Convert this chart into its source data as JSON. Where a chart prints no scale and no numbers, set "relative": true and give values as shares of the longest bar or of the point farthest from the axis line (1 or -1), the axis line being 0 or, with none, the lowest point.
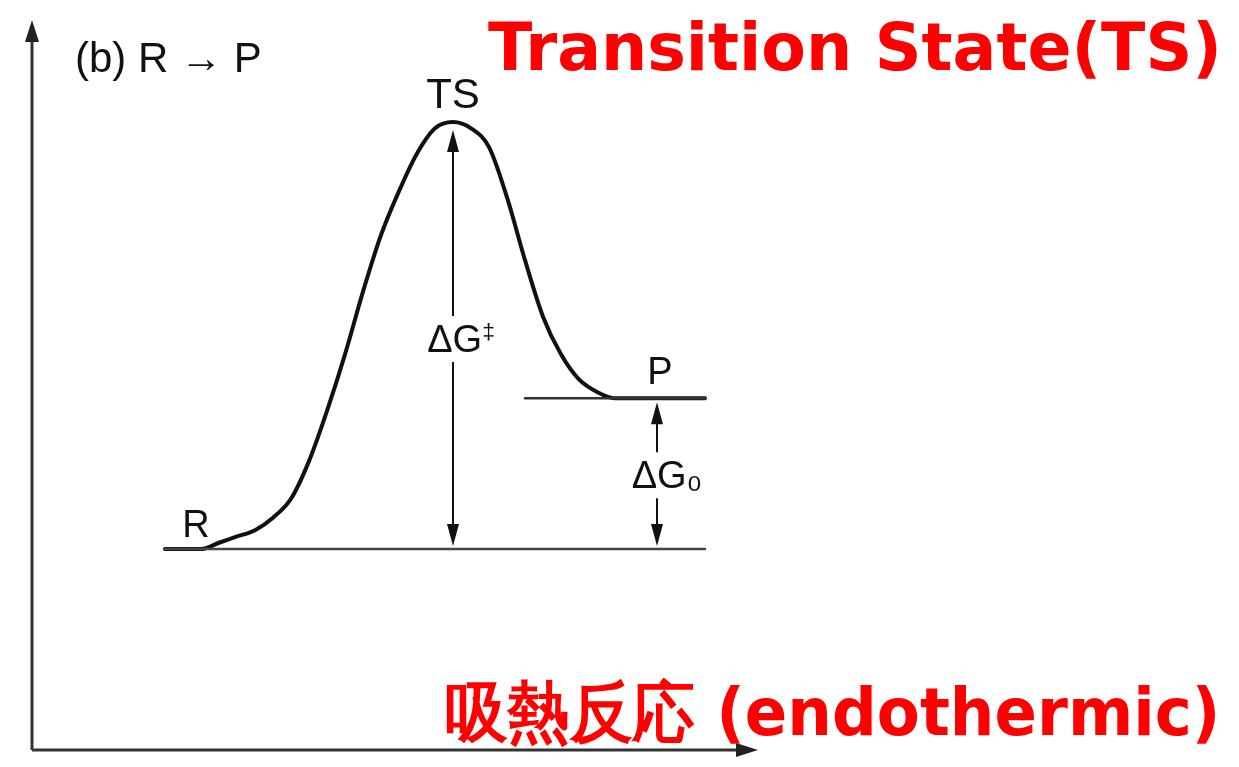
{
  "chart_data": {
    "type": "line",
    "title": "(b) R → P",
    "relative": true,
    "categories": [
      null,
      null,
      null,
      null,
      null,
      null,
      null,
      null,
      null,
      null,
      null,
      null,
      null,
      null,
      null,
      null,
      null,
      null,
      null,
      null,
      null,
      null,
      null,
      null,
      null,
      null,
      null,
      null,
      null,
      null,
      null
    ],
    "series": [
      {
        "color": "#111111",
        "values": [
          0.32,
          0.32,
          0.32,
          0.33,
          0.34,
          0.35,
          0.37,
          0.4,
          0.46,
          0.54,
          0.63,
          0.73,
          0.82,
          0.89,
          0.95,
          0.99,
          1,
          0.99,
          0.96,
          0.88,
          0.78,
          0.69,
          0.63,
          0.59,
          0.57,
          0.56,
          0.56,
          0.56,
          0.56,
          0.56,
          0.56
        ]
      },
      {
        "name": "R",
        "color": "#444444",
        "values": [
          0.32,
          0.32,
          0.32,
          0.32,
          0.32,
          0.32,
          0.32,
          0.32,
          0.32,
          0.32,
          0.32,
          0.32,
          0.32,
          0.32,
          0.32,
          0.32,
          0.32,
          0.32,
          0.32,
          0.32,
          0.32,
          0.32,
          0.32,
          0.32,
          0.32,
          0.32,
          0.32,
          0.32,
          0.32,
          0.32,
          0.32
        ]
      },
      {
        "name": "P",
        "color": "#333333",
        "values": [
          null,
          null,
          null,
          null,
          null,
          null,
          null,
          null,
          null,
          null,
          null,
          null,
          null,
          null,
          null,
          null,
          null,
          null,
          null,
          null,
          0.56,
          0.56,
          0.56,
          0.56,
          0.56,
          0.56,
          0.56,
          0.56,
          0.56,
          0.56,
          0.56
        ]
      }
    ],
    "annotations": [
      "Transition State(TS)",
      "吸熱反応 (endothermic)",
      "TS",
      "ΔG$^{‡}$",
      "ΔG₀"
    ]
  }
}
